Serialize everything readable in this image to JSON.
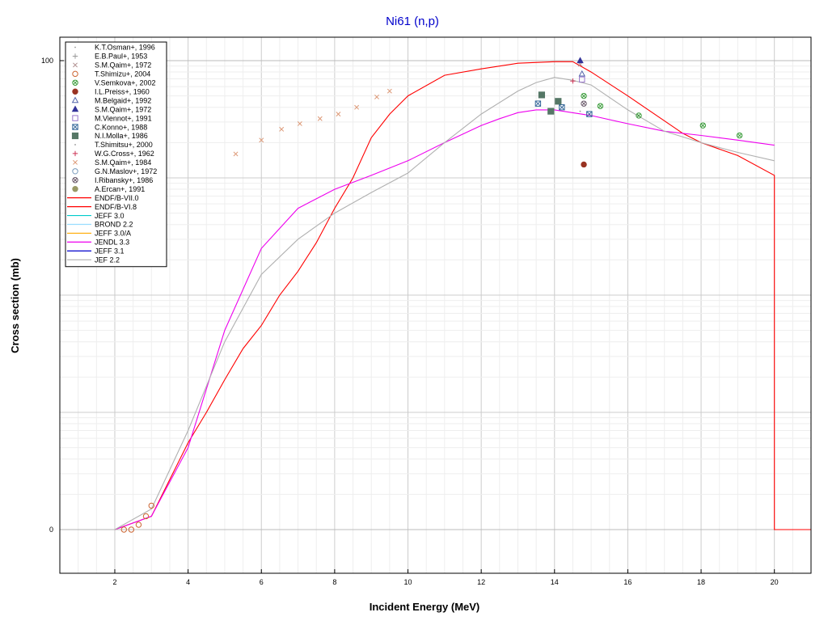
{
  "chart_data": {
    "type": "scatter",
    "title": "Ni61 (n,p)",
    "xlabel": "Incident Energy (MeV)",
    "ylabel": "Cross section (mb)",
    "xlim": [
      0.5,
      21.0
    ],
    "ylim": [
      -0.2,
      0.1
    ],
    "y_scale": "log",
    "x_ticks": [
      "2",
      "4",
      "6",
      "8",
      "10",
      "12",
      "14",
      "16",
      "18",
      "20"
    ],
    "y_ticks": [
      "100",
      "0"
    ],
    "grid": true,
    "legend_position": "top-left",
    "points": [
      {
        "name": "K.T.Osman+, 1996",
        "color": "#999999",
        "marker": "dot",
        "points": []
      },
      {
        "name": "E.B.Paul+, 1953",
        "color": "#999999",
        "marker": "plus",
        "points": []
      },
      {
        "name": "S.M.Qaim+, 1972",
        "color": "#b09090",
        "marker": "x",
        "points": [
          [
            14.7,
            93
          ]
        ]
      },
      {
        "name": "T.Shimizu+, 2004",
        "color": "#cc6633",
        "marker": "circle-open",
        "points": [
          [
            2.25,
            0.007
          ],
          [
            2.45,
            0.009
          ],
          [
            2.65,
            0.011
          ],
          [
            2.85,
            0.013
          ],
          [
            3.0,
            0.016
          ]
        ]
      },
      {
        "name": "V.Semkova+, 2002",
        "color": "#339933",
        "marker": "circle-x",
        "points": [
          [
            14.8,
            50
          ],
          [
            15.25,
            41
          ],
          [
            16.3,
            34
          ],
          [
            18.05,
            28
          ],
          [
            19.05,
            23
          ]
        ]
      },
      {
        "name": "I.L.Preiss+, 1960",
        "color": "#993322",
        "marker": "circle-filled",
        "points": [
          [
            14.8,
            13
          ]
        ]
      },
      {
        "name": "M.Belgaid+, 1992",
        "color": "#5566aa",
        "marker": "triangle-open",
        "points": [
          [
            14.75,
            77
          ]
        ]
      },
      {
        "name": "S.M.Qaim+, 1972",
        "color": "#333399",
        "marker": "triangle-filled",
        "points": [
          [
            14.7,
            100
          ]
        ]
      },
      {
        "name": "M.Viennot+, 1991",
        "color": "#9977cc",
        "marker": "square-open",
        "points": [
          [
            14.75,
            69
          ]
        ]
      },
      {
        "name": "C.Konno+, 1988",
        "color": "#336699",
        "marker": "square-x",
        "points": [
          [
            13.55,
            43
          ],
          [
            14.2,
            40
          ],
          [
            14.95,
            35
          ]
        ]
      },
      {
        "name": "N.I.Molla+, 1986",
        "color": "#557766",
        "marker": "square-filled",
        "points": [
          [
            13.65,
            51
          ],
          [
            14.1,
            45
          ],
          [
            13.9,
            37
          ]
        ]
      },
      {
        "name": "T.Shimitsu+, 2000",
        "color": "#999999",
        "marker": "dot",
        "points": [
          [
            14.7,
            37
          ]
        ]
      },
      {
        "name": "W.G.Cross+, 1962",
        "color": "#cc3355",
        "marker": "plus",
        "points": [
          [
            14.5,
            67
          ]
        ]
      },
      {
        "name": "S.M.Qaim+, 1984",
        "color": "#dd9977",
        "marker": "x",
        "points": [
          [
            5.3,
            16
          ],
          [
            6.0,
            21
          ],
          [
            6.55,
            26
          ],
          [
            7.05,
            29
          ],
          [
            7.6,
            32
          ],
          [
            8.1,
            35
          ],
          [
            8.6,
            40
          ],
          [
            9.15,
            49
          ],
          [
            9.5,
            55
          ]
        ]
      },
      {
        "name": "G.N.Maslov+, 1972",
        "color": "#7799bb",
        "marker": "circle-open",
        "points": []
      },
      {
        "name": "I.Ribansky+, 1986",
        "color": "#665566",
        "marker": "circle-x",
        "points": [
          [
            14.8,
            43
          ]
        ]
      },
      {
        "name": "A.Ercan+, 1991",
        "color": "#999966",
        "marker": "circle-filled",
        "points": []
      }
    ],
    "series": [
      {
        "name": "ENDF/B-VII.0",
        "color": "#ff0000",
        "x": [],
        "y": []
      },
      {
        "name": "ENDF/B-VI.8",
        "color": "#ff0000",
        "x": [
          0.5,
          2.0,
          3.0,
          4.0,
          4.5,
          5.0,
          5.5,
          6.0,
          6.5,
          7.0,
          7.5,
          8.0,
          8.5,
          9.0,
          9.5,
          10.0,
          11.0,
          12.0,
          13.0,
          14.0,
          14.5,
          15.0,
          16.0,
          17.5,
          18.0,
          19.0,
          20.0,
          20.0,
          21.0
        ],
        "y": [
          0,
          0,
          0.013,
          0.055,
          0.1,
          0.19,
          0.35,
          0.55,
          1.0,
          1.6,
          2.8,
          5.5,
          10,
          22,
          35,
          50,
          75,
          85,
          95,
          98,
          98,
          80,
          50,
          24,
          20,
          15.5,
          10.5,
          0,
          0
        ]
      },
      {
        "name": "JEFF 3.0",
        "color": "#00cccc",
        "x": [],
        "y": []
      },
      {
        "name": "BROND 2.2",
        "color": "#99ddff",
        "x": [],
        "y": []
      },
      {
        "name": "JEFF 3.0/A",
        "color": "#ffaa00",
        "x": [],
        "y": []
      },
      {
        "name": "JENDL 3.3",
        "color": "#ee00ee",
        "x": [
          0.5,
          2.0,
          3.0,
          4.0,
          5.0,
          6.0,
          7.0,
          8.0,
          9.0,
          10.0,
          11.0,
          12.0,
          12.5,
          13.0,
          13.5,
          14.0,
          15.0,
          16.0,
          17.0,
          18.0,
          19.0,
          20.0
        ],
        "y": [
          0,
          0,
          0.013,
          0.05,
          0.5,
          2.5,
          5.5,
          8,
          10.5,
          14,
          20,
          28,
          32,
          36,
          38,
          38,
          34,
          29,
          25,
          23,
          21,
          19
        ]
      },
      {
        "name": "JEFF 3.1",
        "color": "#0000cc",
        "x": [],
        "y": []
      },
      {
        "name": "JEF 2.2",
        "color": "#b0b0b0",
        "x": [
          0.5,
          2.0,
          3.0,
          4.0,
          5.0,
          6.0,
          7.0,
          8.0,
          9.0,
          10.0,
          11.0,
          12.0,
          13.0,
          13.5,
          14.0,
          14.5,
          15.0,
          16.0,
          17.0,
          18.0,
          19.0,
          20.0
        ],
        "y": [
          0,
          0,
          0.015,
          0.07,
          0.4,
          1.5,
          3.0,
          5.0,
          7.5,
          11,
          20,
          35,
          55,
          65,
          72,
          68,
          62,
          38,
          25,
          20,
          16.5,
          14
        ]
      }
    ]
  }
}
